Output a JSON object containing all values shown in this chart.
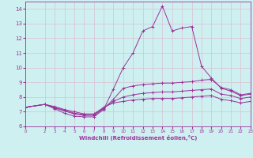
{
  "xlabel": "Windchill (Refroidissement éolien,°C)",
  "xlim": [
    0,
    23
  ],
  "ylim": [
    6,
    14.5
  ],
  "yticks": [
    6,
    7,
    8,
    9,
    10,
    11,
    12,
    13,
    14
  ],
  "xticks": [
    0,
    2,
    3,
    4,
    5,
    6,
    7,
    8,
    9,
    10,
    11,
    12,
    13,
    14,
    15,
    16,
    17,
    18,
    19,
    20,
    21,
    22,
    23
  ],
  "background_color": "#cff0f0",
  "grid_color": "#d8c8d8",
  "line_color": "#993399",
  "lines": [
    {
      "x": [
        0,
        2,
        3,
        4,
        5,
        6,
        7,
        8,
        9,
        10,
        11,
        12,
        13,
        14,
        15,
        16,
        17,
        18,
        19,
        20,
        21,
        22,
        23
      ],
      "y": [
        7.3,
        7.5,
        7.2,
        6.9,
        6.7,
        6.65,
        6.65,
        7.15,
        8.55,
        10.0,
        11.0,
        12.5,
        12.8,
        14.2,
        12.5,
        12.7,
        12.8,
        10.1,
        9.3,
        8.6,
        8.4,
        8.1,
        8.2
      ]
    },
    {
      "x": [
        0,
        2,
        3,
        4,
        5,
        6,
        7,
        8,
        9,
        10,
        11,
        12,
        13,
        14,
        15,
        16,
        17,
        18,
        19,
        20,
        21,
        22,
        23
      ],
      "y": [
        7.3,
        7.5,
        7.25,
        7.05,
        6.85,
        6.75,
        6.75,
        7.2,
        7.85,
        8.6,
        8.75,
        8.85,
        8.9,
        8.95,
        8.95,
        9.0,
        9.05,
        9.15,
        9.2,
        8.65,
        8.5,
        8.15,
        8.25
      ]
    },
    {
      "x": [
        0,
        2,
        3,
        4,
        5,
        6,
        7,
        8,
        9,
        10,
        11,
        12,
        13,
        14,
        15,
        16,
        17,
        18,
        19,
        20,
        21,
        22,
        23
      ],
      "y": [
        7.3,
        7.5,
        7.3,
        7.1,
        6.9,
        6.8,
        6.8,
        7.25,
        7.7,
        8.0,
        8.15,
        8.25,
        8.3,
        8.35,
        8.35,
        8.4,
        8.45,
        8.5,
        8.55,
        8.2,
        8.1,
        7.9,
        8.0
      ]
    },
    {
      "x": [
        0,
        2,
        3,
        4,
        5,
        6,
        7,
        8,
        9,
        10,
        11,
        12,
        13,
        14,
        15,
        16,
        17,
        18,
        19,
        20,
        21,
        22,
        23
      ],
      "y": [
        7.3,
        7.5,
        7.35,
        7.15,
        7.0,
        6.85,
        6.85,
        7.3,
        7.6,
        7.7,
        7.8,
        7.85,
        7.9,
        7.9,
        7.9,
        7.95,
        8.0,
        8.05,
        8.1,
        7.85,
        7.75,
        7.6,
        7.7
      ]
    }
  ]
}
